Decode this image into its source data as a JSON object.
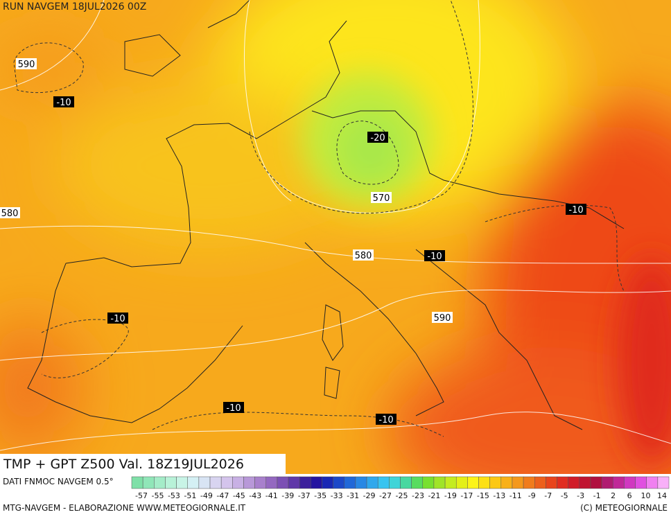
{
  "header": {
    "run": "RUN NAVGEM 18JUL2026 00Z"
  },
  "map": {
    "labels": [
      {
        "text": "590",
        "kind": "geopotential"
      },
      {
        "text": "-10",
        "kind": "temperature"
      },
      {
        "text": "-20",
        "kind": "temperature"
      },
      {
        "text": "570",
        "kind": "geopotential"
      },
      {
        "text": "580",
        "kind": "geopotential"
      },
      {
        "text": "-10",
        "kind": "temperature"
      },
      {
        "text": "580",
        "kind": "geopotential"
      },
      {
        "text": "-10",
        "kind": "temperature"
      },
      {
        "text": "590",
        "kind": "geopotential"
      },
      {
        "text": "-10",
        "kind": "temperature"
      },
      {
        "text": "-10",
        "kind": "temperature"
      },
      {
        "text": "-10",
        "kind": "temperature"
      }
    ]
  },
  "title": "TMP + GPT Z500 Val. 18Z19JUL2026",
  "legend": {
    "source": "DATI FNMOC NAVGEM 0.5°",
    "ticks": [
      "-57",
      "-55",
      "-53",
      "-51",
      "-49",
      "-47",
      "-45",
      "-43",
      "-41",
      "-39",
      "-37",
      "-35",
      "-33",
      "-31",
      "-29",
      "-27",
      "-25",
      "-23",
      "-21",
      "-19",
      "-17",
      "-15",
      "-13",
      "-11",
      "-9",
      "-7",
      "-5",
      "-3",
      "-1",
      "2",
      "6",
      "10",
      "14"
    ]
  },
  "footer": {
    "left": "MTG-NAVGEM - ELABORAZIONE WWW.METEOGIORNALE.IT",
    "right": "(C) METEOGIORNALE"
  }
}
